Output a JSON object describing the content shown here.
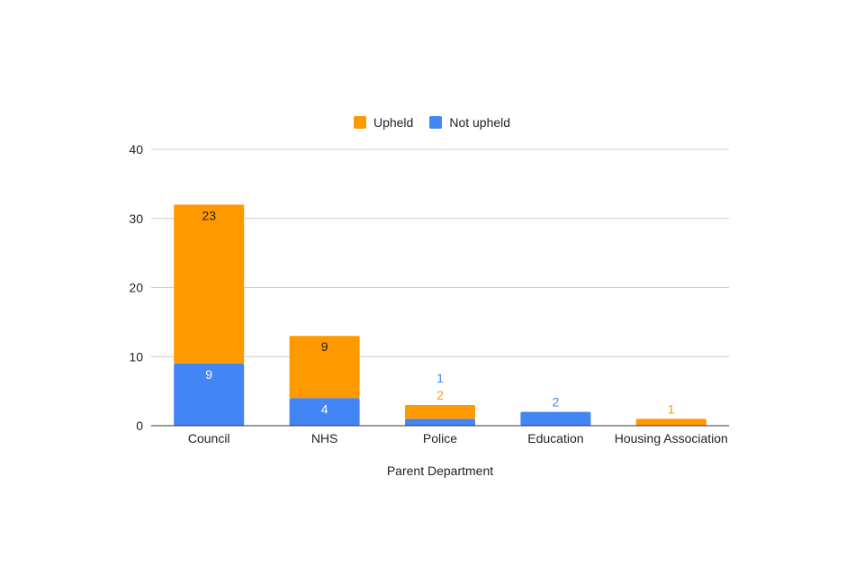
{
  "chart_data": {
    "type": "bar",
    "stacked": true,
    "xlabel": "Parent Department",
    "ylabel": "",
    "ylim": [
      0,
      40
    ],
    "yticks": [
      0,
      10,
      20,
      30,
      40
    ],
    "categories": [
      "Council",
      "NHS",
      "Police",
      "Education",
      "Housing Association"
    ],
    "series": [
      {
        "name": "Not upheld",
        "color": "#4285f4",
        "values": [
          9,
          4,
          1,
          2,
          0
        ],
        "labels": [
          "9",
          "4",
          "1",
          "2",
          ""
        ]
      },
      {
        "name": "Upheld",
        "color": "#ff9900",
        "values": [
          23,
          9,
          2,
          0,
          1
        ],
        "labels": [
          "23",
          "9",
          "2",
          "",
          "1"
        ]
      }
    ],
    "legend": {
      "position": "top",
      "order": [
        "Upheld",
        "Not upheld"
      ]
    },
    "grid": true
  },
  "legend": {
    "items": [
      {
        "label": "Upheld",
        "color": "#ff9900"
      },
      {
        "label": "Not upheld",
        "color": "#4285f4"
      }
    ]
  }
}
